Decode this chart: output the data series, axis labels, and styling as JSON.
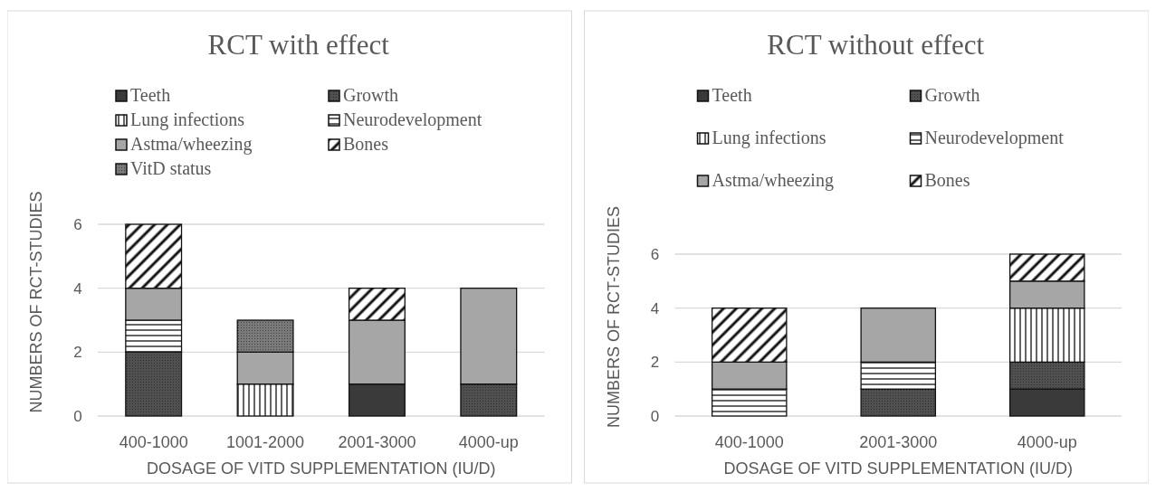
{
  "chart_data": [
    {
      "type": "bar",
      "title": "RCT with effect",
      "xlabel": "DOSAGE OF VITD SUPPLEMENTATION (IU/D)",
      "ylabel": "NUMBERS OF RCT-STUDIES",
      "categories": [
        "400-1000",
        "1001-2000",
        "2001-3000",
        "4000-up"
      ],
      "stacked": true,
      "ylim": [
        0,
        6
      ],
      "yticks": [
        0,
        2,
        4,
        6
      ],
      "grid": "y",
      "legend": "top",
      "series": [
        {
          "name": "Teeth",
          "color": "#3a3a3a",
          "values": [
            null,
            null,
            1,
            null
          ]
        },
        {
          "name": "Growth",
          "color": "#505050",
          "values": [
            2,
            null,
            null,
            1
          ]
        },
        {
          "name": "Lung infections",
          "color": "#ffffff",
          "values": [
            null,
            1,
            null,
            null
          ]
        },
        {
          "name": "Neurodevelopment",
          "color": "#ffffff",
          "values": [
            1,
            null,
            null,
            null
          ]
        },
        {
          "name": "Astma/wheezing",
          "color": "#a6a6a6",
          "values": [
            1,
            1,
            2,
            3
          ]
        },
        {
          "name": "Bones",
          "color": "#ffffff",
          "values": [
            2,
            null,
            1,
            null
          ]
        },
        {
          "name": "VitD status",
          "color": "#7a7a7a",
          "values": [
            null,
            1,
            null,
            null
          ]
        }
      ]
    },
    {
      "type": "bar",
      "title": "RCT without effect",
      "xlabel": "DOSAGE OF VITD SUPPLEMENTATION (IU/D)",
      "ylabel": "NUMBERS OF RCT-STUDIES",
      "categories": [
        "400-1000",
        "2001-3000",
        "4000-up"
      ],
      "stacked": true,
      "ylim": [
        0,
        6
      ],
      "yticks": [
        0,
        2,
        4,
        6
      ],
      "grid": "y",
      "legend": "top",
      "series": [
        {
          "name": "Teeth",
          "color": "#3a3a3a",
          "values": [
            null,
            null,
            1
          ]
        },
        {
          "name": "Growth",
          "color": "#505050",
          "values": [
            null,
            1,
            1
          ]
        },
        {
          "name": "Lung infections",
          "color": "#ffffff",
          "values": [
            null,
            null,
            2
          ]
        },
        {
          "name": "Neurodevelopment",
          "color": "#ffffff",
          "values": [
            1,
            1,
            null
          ]
        },
        {
          "name": "Astma/wheezing",
          "color": "#a6a6a6",
          "values": [
            1,
            2,
            1
          ]
        },
        {
          "name": "Bones",
          "color": "#ffffff",
          "values": [
            2,
            null,
            1
          ]
        }
      ]
    }
  ]
}
